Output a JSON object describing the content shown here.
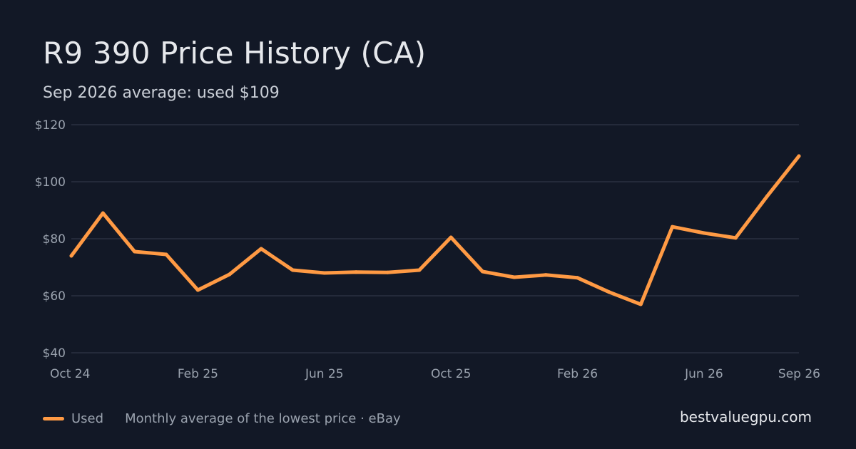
{
  "header": {
    "title": "R9 390 Price History (CA)",
    "subtitle": "Sep 2026 average: used $109"
  },
  "footer": {
    "legend_label": "Used",
    "note": "Monthly average of the lowest price · eBay",
    "brand": "bestvaluegpu.com"
  },
  "colors": {
    "background": "#121826",
    "line": "#ff9a44",
    "grid": "#2a3140",
    "axis_text": "#9aa2ae"
  },
  "chart_data": {
    "type": "line",
    "title": "R9 390 Price History (CA)",
    "subtitle": "Sep 2026 average: used $109",
    "xlabel": "",
    "ylabel": "",
    "ylim": [
      40,
      120
    ],
    "yticks": [
      40,
      60,
      80,
      100,
      120
    ],
    "ytick_labels": [
      "$40",
      "$60",
      "$80",
      "$100",
      "$120"
    ],
    "xtick_labels": [
      {
        "label": "Oct 24",
        "index": 0
      },
      {
        "label": "Feb 25",
        "index": 4
      },
      {
        "label": "Jun 25",
        "index": 8
      },
      {
        "label": "Oct 25",
        "index": 12
      },
      {
        "label": "Feb 26",
        "index": 16
      },
      {
        "label": "Jun 26",
        "index": 20
      },
      {
        "label": "Sep 26",
        "index": 23
      }
    ],
    "grid": true,
    "legend": "bottom-left",
    "x": [
      "Oct 24",
      "Nov 24",
      "Dec 24",
      "Jan 25",
      "Feb 25",
      "Mar 25",
      "Apr 25",
      "May 25",
      "Jun 25",
      "Jul 25",
      "Aug 25",
      "Sep 25",
      "Oct 25",
      "Nov 25",
      "Dec 25",
      "Jan 26",
      "Feb 26",
      "Mar 26",
      "Apr 26",
      "May 26",
      "Jun 26",
      "Jul 26",
      "Aug 26",
      "Sep 26"
    ],
    "series": [
      {
        "name": "Used",
        "values": [
          74,
          89,
          75.5,
          74.5,
          62,
          67.5,
          76.5,
          69,
          68,
          68.3,
          68.2,
          69,
          80.5,
          68.5,
          66.5,
          67.3,
          66.3,
          61.3,
          57,
          84.2,
          82,
          80.3,
          95,
          109
        ]
      }
    ]
  }
}
